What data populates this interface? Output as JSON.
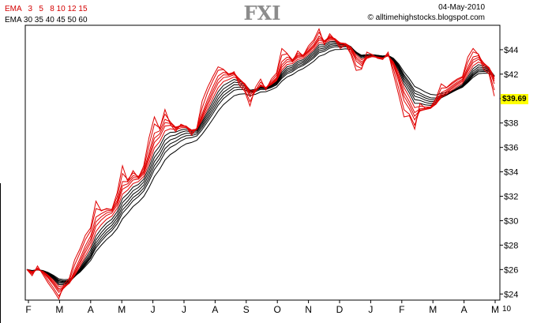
{
  "chart_data": {
    "type": "line",
    "title": "FXI",
    "date": "04-May-2010",
    "source": "© alltimehighstocks.blogspot.com",
    "legend_fast": "EMA   3   5   8 10 12 15",
    "legend_slow": "EMA 30 35 40 45 50 60",
    "last_price_label": "$39.69",
    "last_price": 39.69,
    "ylim": [
      23.5,
      46
    ],
    "y_ticks": [
      24,
      26,
      28,
      30,
      32,
      34,
      36,
      38,
      40,
      42,
      44
    ],
    "y_tick_labels": [
      "$24",
      "$26",
      "$28",
      "$30",
      "$32",
      "$34",
      "$36",
      "$38",
      "",
      "$42",
      "$44"
    ],
    "x_labels": [
      "F",
      "M",
      "A",
      "M",
      "J",
      "J",
      "A",
      "S",
      "O",
      "N",
      "D",
      "J",
      "F",
      "M",
      "A",
      "M"
    ],
    "x_end_label": "10",
    "fast_periods": [
      3,
      5,
      8,
      10,
      12,
      15
    ],
    "slow_periods": [
      30,
      35,
      40,
      45,
      50,
      60
    ],
    "price_monthly": [
      25.5,
      24.9,
      28.6,
      31.5,
      36.2,
      37.6,
      38.6,
      39.0,
      41.5,
      43.0,
      44.0,
      43.3,
      38.4,
      40.5,
      43.4,
      39.7
    ],
    "price": [
      26.0,
      25.5,
      26.3,
      25.6,
      24.9,
      24.3,
      23.6,
      24.8,
      25.3,
      26.8,
      27.7,
      28.8,
      29.4,
      31.6,
      30.8,
      31.0,
      30.9,
      32.3,
      34.5,
      33.2,
      34.1,
      33.5,
      34.5,
      36.8,
      38.5,
      37.5,
      39.1,
      37.9,
      37.3,
      37.9,
      37.7,
      37.0,
      37.6,
      39.8,
      40.9,
      41.8,
      42.6,
      42.4,
      41.9,
      42.2,
      41.1,
      40.6,
      39.4,
      40.9,
      41.6,
      40.7,
      41.6,
      42.1,
      44.1,
      43.7,
      43.0,
      43.9,
      43.5,
      44.3,
      44.8,
      45.7,
      44.4,
      45.3,
      44.8,
      44.1,
      44.4,
      43.6,
      42.3,
      42.4,
      43.8,
      43.6,
      43.3,
      43.2,
      43.8,
      42.0,
      40.3,
      38.5,
      38.6,
      37.5,
      39.6,
      39.2,
      39.3,
      40.0,
      41.2,
      40.9,
      41.3,
      41.6,
      41.8,
      43.4,
      44.1,
      43.6,
      42.4,
      42.0,
      40.2
    ]
  }
}
